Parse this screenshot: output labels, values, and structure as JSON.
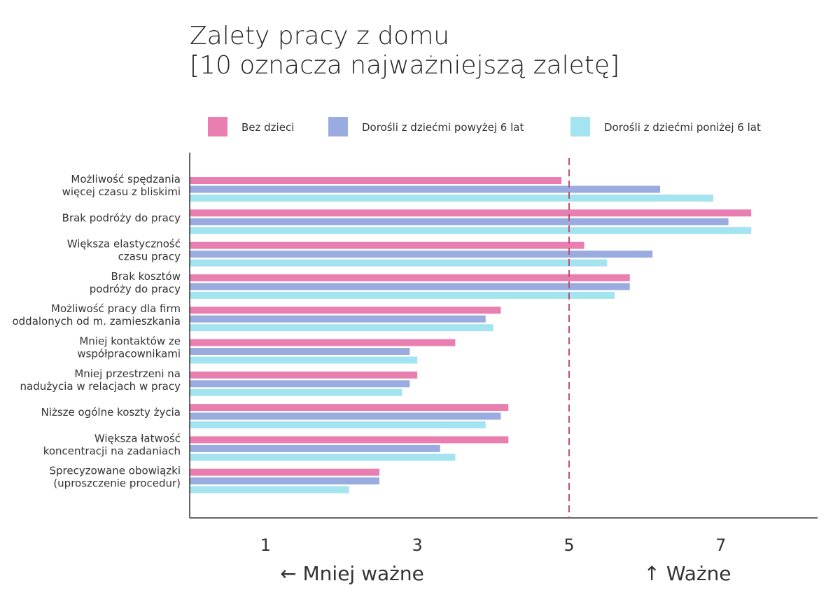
{
  "chart_data": {
    "type": "bar",
    "orientation": "horizontal",
    "title": [
      "Zalety pracy z domu",
      "[10 oznacza najważniejszą zaletę]"
    ],
    "categories": [
      [
        "Możliwość spędzania",
        "więcej czasu z bliskimi"
      ],
      [
        "Brak podróży do pracy"
      ],
      [
        "Większa elastyczność",
        "czasu pracy"
      ],
      [
        "Brak kosztów",
        "podróży do pracy"
      ],
      [
        "Możliwość pracy dla firm",
        "oddalonych od m. zamieszkania"
      ],
      [
        "Mniej kontaktów ze",
        "współpracownikami"
      ],
      [
        "Mniej przestrzeni na",
        "nadużycia w relacjach w pracy"
      ],
      [
        "Niższe ogólne koszty życia"
      ],
      [
        "Większa łatwość",
        "koncentracji na zadaniach"
      ],
      [
        "Sprecyzowane obowiązki",
        "(uproszczenie procedur)"
      ]
    ],
    "series": [
      {
        "name": "Bez dzieci",
        "color": "#e87fb0",
        "values": [
          4.9,
          7.4,
          5.2,
          5.8,
          4.1,
          3.5,
          3.0,
          4.2,
          4.2,
          2.5
        ]
      },
      {
        "name": "Dorośli z dziećmi powyżej 6 lat",
        "color": "#9aabdf",
        "values": [
          6.2,
          7.1,
          6.1,
          5.8,
          3.9,
          2.9,
          2.9,
          4.1,
          3.3,
          2.5
        ]
      },
      {
        "name": "Dorośli z dziećmi poniżej 6 lat",
        "color": "#a3e4f0",
        "values": [
          6.9,
          7.4,
          5.5,
          5.6,
          4.0,
          3.0,
          2.8,
          3.9,
          3.5,
          2.1
        ]
      }
    ],
    "xlim": [
      0,
      8.27
    ],
    "xticks": [
      1,
      3,
      5,
      7
    ],
    "reference_line": {
      "value": 5,
      "color": "#c0506e"
    },
    "xlabel_left": "← Mniej ważne",
    "xlabel_right": "↑ Ważne",
    "legend_position": "top",
    "grid": false
  }
}
